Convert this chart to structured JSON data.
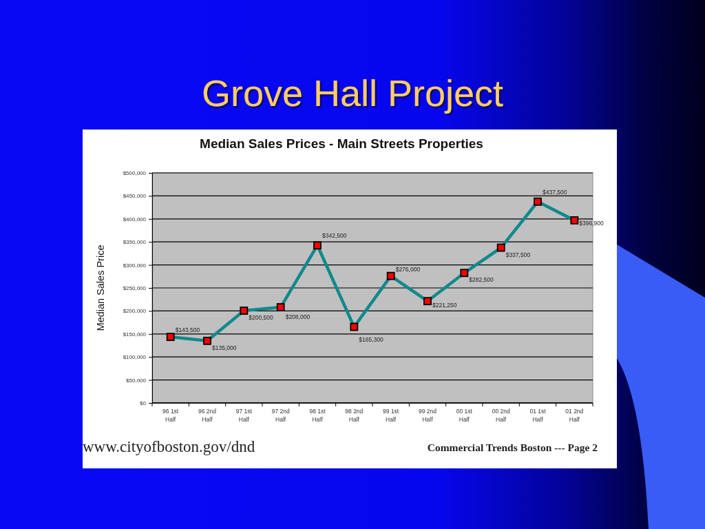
{
  "chart_data": {
    "type": "line",
    "title": "Grove Hall Project",
    "subtitle": "Median Sales Prices - Main Streets Properties",
    "ylabel": "Median Sales Price",
    "categories": [
      "96 1st Half",
      "96 2nd Half",
      "97 1st Half",
      "97 2nd Half",
      "98 1st Half",
      "98 2nd Half",
      "99 1st Half",
      "99 2nd Half",
      "00 1st Half",
      "00 2nd Half",
      "01 1st Half",
      "01 2nd Half"
    ],
    "values": [
      143500,
      135000,
      200500,
      208000,
      342500,
      165300,
      276000,
      221250,
      282500,
      337500,
      437500,
      396900
    ],
    "value_labels": [
      "$143,500",
      "$135,000",
      "$200,500",
      "$208,000",
      "$342,500",
      "$165,300",
      "$276,000",
      "$221,250",
      "$282,500",
      "$337,500",
      "$437,500",
      "$396,900"
    ],
    "color": "#10898b",
    "ylim": [
      0,
      500000
    ],
    "yticks": [
      {
        "value": 0,
        "label": "$0"
      },
      {
        "value": 50000,
        "label": "$50,000"
      },
      {
        "value": 100000,
        "label": "$100,000"
      },
      {
        "value": 150000,
        "label": "$150,000"
      },
      {
        "value": 200000,
        "label": "$200,000"
      },
      {
        "value": 250000,
        "label": "$250,000"
      },
      {
        "value": 300000,
        "label": "$300,000"
      },
      {
        "value": 350000,
        "label": "$350,000"
      },
      {
        "value": 400000,
        "label": "$400,000"
      },
      {
        "value": 450000,
        "label": "$450,000"
      },
      {
        "value": 500000,
        "label": "$500,000"
      }
    ],
    "grid": "y",
    "marker": "square",
    "line_style": "solid",
    "annotations": [
      "www.cityofboston.gov/dnd",
      "Commercial Trends Boston --- Page 2"
    ]
  }
}
